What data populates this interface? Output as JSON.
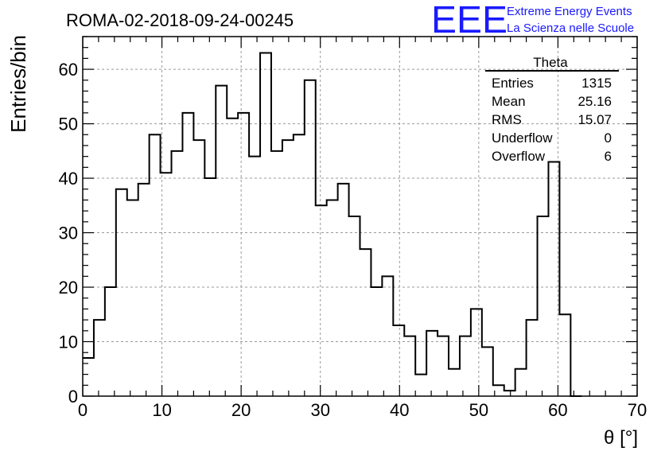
{
  "header": {
    "run_title": "ROMA-02-2018-09-24-00245",
    "logo_text": "EEE",
    "logo_line1": "Extreme Energy Events",
    "logo_line2": "La Scienza nelle Scuole",
    "logo_color": "#1a1aff"
  },
  "stats_box": {
    "title": "Theta",
    "rows": [
      {
        "label": "Entries",
        "value": "1315"
      },
      {
        "label": "Mean",
        "value": "25.16"
      },
      {
        "label": "RMS",
        "value": "15.07"
      },
      {
        "label": "Underflow",
        "value": "0"
      },
      {
        "label": "Overflow",
        "value": "6"
      }
    ]
  },
  "chart_data": {
    "type": "histogram",
    "title": "ROMA-02-2018-09-24-00245",
    "xlabel": "θ [°]",
    "ylabel": "Entries/bin",
    "xlim": [
      0,
      70
    ],
    "ylim": [
      0,
      66
    ],
    "grid": true,
    "bin_width": 1.4,
    "bin_start": 0,
    "x_ticks": [
      0,
      10,
      20,
      30,
      40,
      50,
      60,
      70
    ],
    "y_ticks": [
      0,
      10,
      20,
      30,
      40,
      50,
      60
    ],
    "values": [
      7,
      14,
      20,
      38,
      36,
      39,
      48,
      41,
      45,
      52,
      47,
      40,
      57,
      51,
      52,
      44,
      63,
      45,
      47,
      48,
      58,
      35,
      36,
      39,
      33,
      27,
      20,
      22,
      13,
      11,
      4,
      12,
      11,
      5,
      11,
      16,
      9,
      2,
      1,
      5,
      14,
      33,
      43,
      15,
      0
    ],
    "line_color": "#000000"
  }
}
